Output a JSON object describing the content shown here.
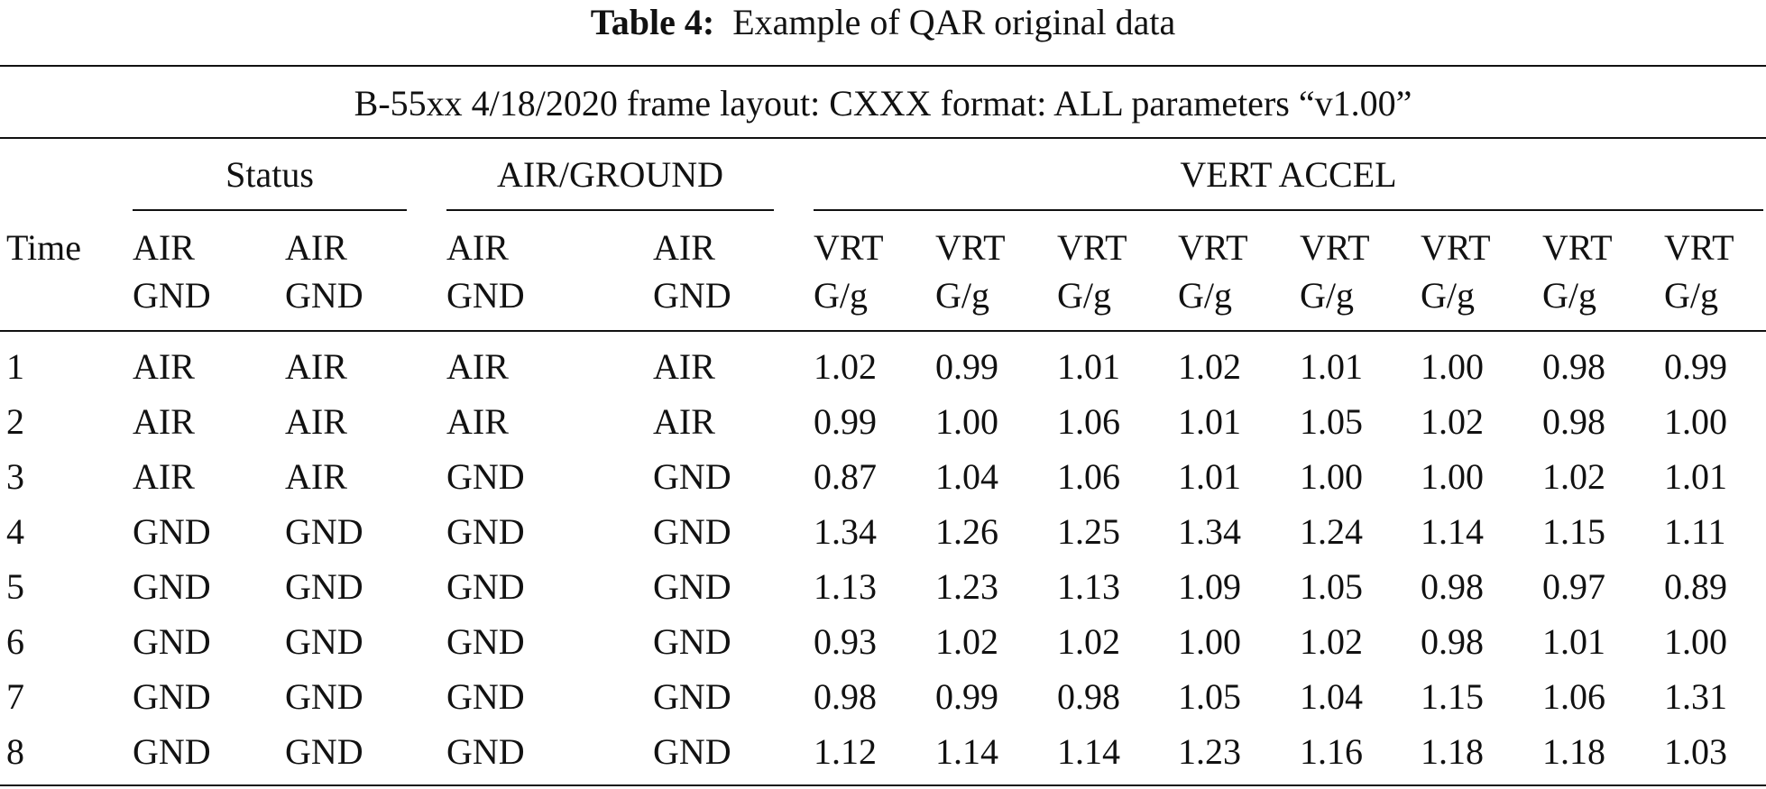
{
  "caption": {
    "label": "Table 4:",
    "text": "Example of QAR original data"
  },
  "table": {
    "banner": "B-55xx 4/18/2020 frame layout: CXXX format: ALL parameters “v1.00”",
    "groups": [
      "Status",
      "AIR/GROUND",
      "VERT ACCEL"
    ],
    "columns": [
      [
        "Time"
      ],
      [
        "AIR",
        "GND"
      ],
      [
        "AIR",
        "GND"
      ],
      [
        "AIR",
        "GND"
      ],
      [
        "AIR",
        "GND"
      ],
      [
        "VRT",
        "G/g"
      ],
      [
        "VRT",
        "G/g"
      ],
      [
        "VRT",
        "G/g"
      ],
      [
        "VRT",
        "G/g"
      ],
      [
        "VRT",
        "G/g"
      ],
      [
        "VRT",
        "G/g"
      ],
      [
        "VRT",
        "G/g"
      ],
      [
        "VRT",
        "G/g"
      ]
    ],
    "rows": [
      [
        "1",
        "AIR",
        "AIR",
        "AIR",
        "AIR",
        "1.02",
        "0.99",
        "1.01",
        "1.02",
        "1.01",
        "1.00",
        "0.98",
        "0.99"
      ],
      [
        "2",
        "AIR",
        "AIR",
        "AIR",
        "AIR",
        "0.99",
        "1.00",
        "1.06",
        "1.01",
        "1.05",
        "1.02",
        "0.98",
        "1.00"
      ],
      [
        "3",
        "AIR",
        "AIR",
        "GND",
        "GND",
        "0.87",
        "1.04",
        "1.06",
        "1.01",
        "1.00",
        "1.00",
        "1.02",
        "1.01"
      ],
      [
        "4",
        "GND",
        "GND",
        "GND",
        "GND",
        "1.34",
        "1.26",
        "1.25",
        "1.34",
        "1.24",
        "1.14",
        "1.15",
        "1.11"
      ],
      [
        "5",
        "GND",
        "GND",
        "GND",
        "GND",
        "1.13",
        "1.23",
        "1.13",
        "1.09",
        "1.05",
        "0.98",
        "0.97",
        "0.89"
      ],
      [
        "6",
        "GND",
        "GND",
        "GND",
        "GND",
        "0.93",
        "1.02",
        "1.02",
        "1.00",
        "1.02",
        "0.98",
        "1.01",
        "1.00"
      ],
      [
        "7",
        "GND",
        "GND",
        "GND",
        "GND",
        "0.98",
        "0.99",
        "0.98",
        "1.05",
        "1.04",
        "1.15",
        "1.06",
        "1.31"
      ],
      [
        "8",
        "GND",
        "GND",
        "GND",
        "GND",
        "1.12",
        "1.14",
        "1.14",
        "1.23",
        "1.16",
        "1.18",
        "1.18",
        "1.03"
      ]
    ]
  }
}
